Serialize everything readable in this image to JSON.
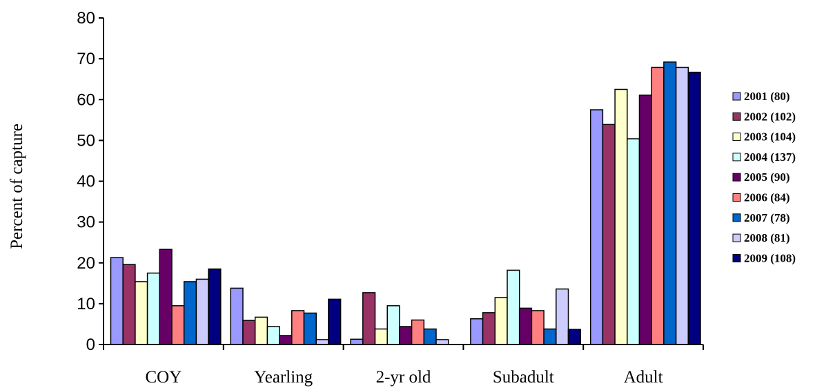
{
  "chart_data": {
    "type": "bar",
    "ylabel": "Percent of capture",
    "ylim": [
      0,
      80
    ],
    "yticks": [
      0,
      10,
      20,
      30,
      40,
      50,
      60,
      70,
      80
    ],
    "grid": false,
    "legend_position": "right",
    "categories": [
      "COY",
      "Yearling",
      "2-yr old",
      "Subadult",
      "Adult"
    ],
    "series": [
      {
        "name": "2001 (80)",
        "color": "#9999ff",
        "values": [
          21.3,
          13.8,
          1.3,
          6.3,
          57.5
        ]
      },
      {
        "name": "2002 (102)",
        "color": "#993366",
        "values": [
          19.6,
          5.9,
          12.7,
          7.8,
          53.9
        ]
      },
      {
        "name": "2003 (104)",
        "color": "#ffffcc",
        "values": [
          15.4,
          6.7,
          3.8,
          11.5,
          62.5
        ]
      },
      {
        "name": "2004 (137)",
        "color": "#ccffff",
        "values": [
          17.5,
          4.4,
          9.5,
          18.2,
          50.4
        ]
      },
      {
        "name": "2005 (90)",
        "color": "#660066",
        "values": [
          23.3,
          2.2,
          4.4,
          8.9,
          61.1
        ]
      },
      {
        "name": "2006 (84)",
        "color": "#ff8080",
        "values": [
          9.5,
          8.3,
          6.0,
          8.3,
          67.9
        ]
      },
      {
        "name": "2007 (78)",
        "color": "#0066cc",
        "values": [
          15.4,
          7.7,
          3.8,
          3.8,
          69.2
        ]
      },
      {
        "name": "2008 (81)",
        "color": "#ccccff",
        "values": [
          16.0,
          1.2,
          1.2,
          13.6,
          67.9
        ]
      },
      {
        "name": "2009 (108)",
        "color": "#000080",
        "values": [
          18.5,
          11.1,
          0,
          3.7,
          66.7
        ]
      }
    ]
  }
}
